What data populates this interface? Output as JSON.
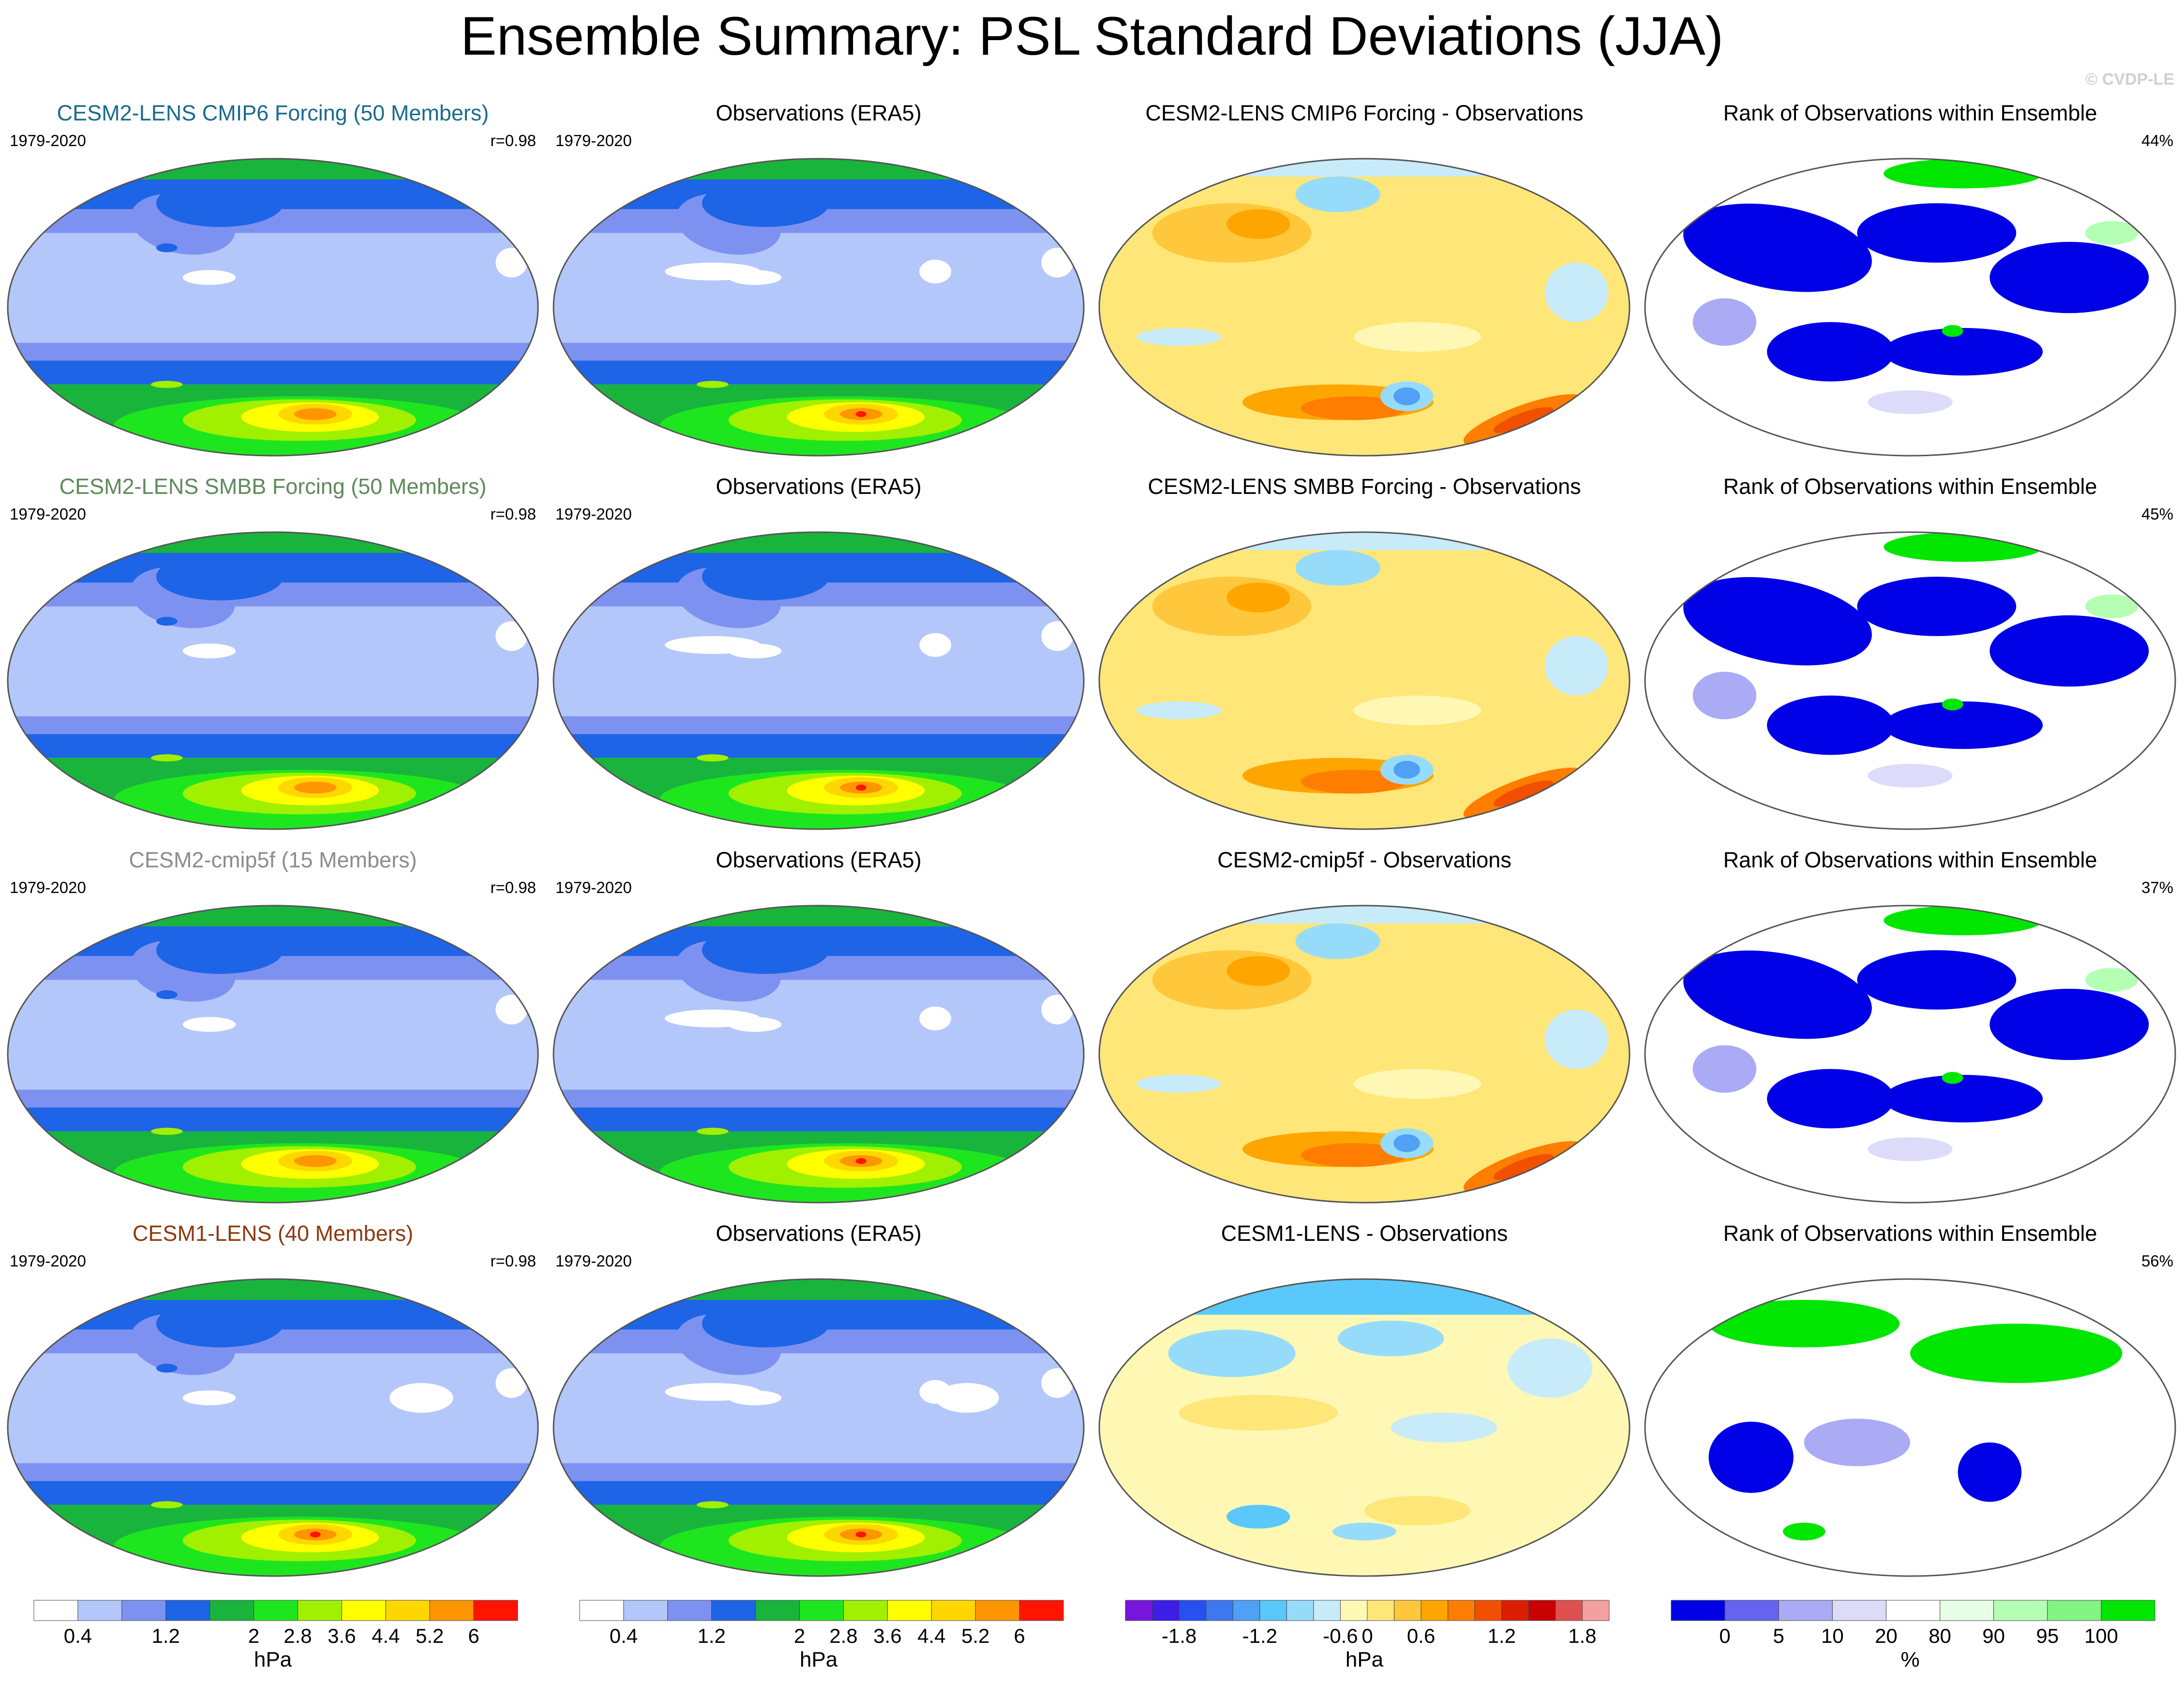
{
  "title": "Ensemble Summary: PSL Standard Deviations (JJA)",
  "watermark": "© CVDP-LE",
  "chart_data": {
    "type": "heatmap",
    "description_rows": [
      {
        "model": {
          "title": "CESM2-LENS CMIP6 Forcing (50 Members)",
          "title_color": "#1a6b8a",
          "years": "1979-2020",
          "pattern_corr": "r=0.98"
        },
        "obs": {
          "title": "Observations (ERA5)",
          "years": "1979-2020"
        },
        "diff": {
          "title": "CESM2-LENS CMIP6 Forcing - Observations"
        },
        "rank": {
          "title": "Rank of Observations within Ensemble",
          "percent": "44%"
        }
      },
      {
        "model": {
          "title": "CESM2-LENS SMBB Forcing (50 Members)",
          "title_color": "#5e8a5a",
          "years": "1979-2020",
          "pattern_corr": "r=0.98"
        },
        "obs": {
          "title": "Observations (ERA5)",
          "years": "1979-2020"
        },
        "diff": {
          "title": "CESM2-LENS SMBB Forcing - Observations"
        },
        "rank": {
          "title": "Rank of Observations within Ensemble",
          "percent": "45%"
        }
      },
      {
        "model": {
          "title": "CESM2-cmip5f (15 Members)",
          "title_color": "#8c8c8c",
          "years": "1979-2020",
          "pattern_corr": "r=0.98"
        },
        "obs": {
          "title": "Observations (ERA5)",
          "years": "1979-2020"
        },
        "diff": {
          "title": "CESM2-cmip5f - Observations"
        },
        "rank": {
          "title": "Rank of Observations within Ensemble",
          "percent": "37%"
        }
      },
      {
        "model": {
          "title": "CESM1-LENS (40 Members)",
          "title_color": "#8b3a0f",
          "years": "1979-2020",
          "pattern_corr": "r=0.98"
        },
        "obs": {
          "title": "Observations (ERA5)",
          "years": "1979-2020"
        },
        "diff": {
          "title": "CESM1-LENS - Observations"
        },
        "rank": {
          "title": "Rank of Observations within Ensemble",
          "percent": "56%"
        }
      }
    ],
    "colorbars": [
      {
        "name": "model",
        "unit": "hPa",
        "colors": [
          "#ffffff",
          "#b4c7fa",
          "#7d92f0",
          "#1e64e6",
          "#19b43c",
          "#1ee61e",
          "#a0f000",
          "#ffff00",
          "#ffd700",
          "#ff9600",
          "#ff1400"
        ],
        "labels": [
          "0.4",
          "1.2",
          "2",
          "2.8",
          "3.6",
          "4.4",
          "5.2",
          "6"
        ],
        "label_at_boundaries": [
          1,
          3,
          5,
          6,
          7,
          8,
          9,
          10
        ]
      },
      {
        "name": "obs",
        "unit": "hPa",
        "colors": [
          "#ffffff",
          "#b4c7fa",
          "#7d92f0",
          "#1e64e6",
          "#19b43c",
          "#1ee61e",
          "#a0f000",
          "#ffff00",
          "#ffd700",
          "#ff9600",
          "#ff1400"
        ],
        "labels": [
          "0.4",
          "1.2",
          "2",
          "2.8",
          "3.6",
          "4.4",
          "5.2",
          "6"
        ],
        "label_at_boundaries": [
          1,
          3,
          5,
          6,
          7,
          8,
          9,
          10
        ]
      },
      {
        "name": "diff",
        "unit": "hPa",
        "colors": [
          "#7814dc",
          "#3c1ee6",
          "#2850f0",
          "#3c78f0",
          "#50a0f5",
          "#5ac8fa",
          "#96dcfa",
          "#c8ebfa",
          "#fff8b4",
          "#ffe678",
          "#ffc83c",
          "#ffa500",
          "#ff7d00",
          "#f05000",
          "#dc1e00",
          "#c80000",
          "#e15050",
          "#f5a0a0"
        ],
        "labels": [
          "-1.8",
          "-1.2",
          "-0.6",
          "0",
          "0.6",
          "1.2",
          "1.8"
        ],
        "label_at_boundaries": [
          2,
          5,
          8,
          9,
          11,
          14,
          17
        ]
      },
      {
        "name": "rank",
        "unit": "%",
        "colors": [
          "#0000e6",
          "#6464f0",
          "#aaaaf5",
          "#dcdcfa",
          "#ffffff",
          "#e6ffe6",
          "#b4ffb4",
          "#82f582",
          "#00e600"
        ],
        "labels": [
          "0",
          "5",
          "10",
          "20",
          "80",
          "90",
          "95",
          "100"
        ],
        "label_at_boundaries": [
          1,
          2,
          3,
          4,
          5,
          6,
          7,
          8
        ]
      }
    ]
  }
}
